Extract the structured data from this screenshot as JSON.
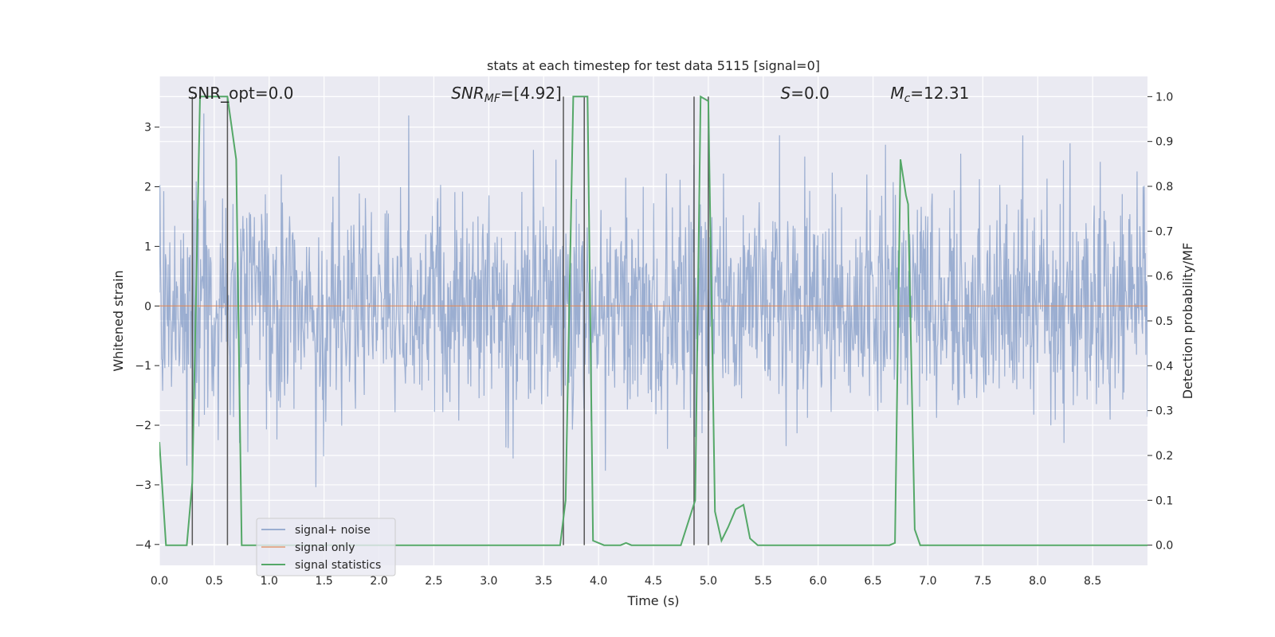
{
  "chart_data": {
    "type": "line",
    "title": "stats at each timestep for test data 5115 [signal=0]",
    "xlabel": "Time (s)",
    "ylabel_left": "Whitened strain",
    "ylabel_right": "Detection probability/MF",
    "xlim": [
      0.0,
      9.0
    ],
    "ylim_left": [
      -4.35,
      3.85
    ],
    "ylim_right": [
      -0.045,
      1.045
    ],
    "x_ticks": [
      0.0,
      0.5,
      1.0,
      1.5,
      2.0,
      2.5,
      3.0,
      3.5,
      4.0,
      4.5,
      5.0,
      5.5,
      6.0,
      6.5,
      7.0,
      7.5,
      8.0,
      8.5
    ],
    "x_tick_labels": [
      "0.0",
      "0.5",
      "1.0",
      "1.5",
      "2.0",
      "2.5",
      "3.0",
      "3.5",
      "4.0",
      "4.5",
      "5.0",
      "5.5",
      "6.0",
      "6.5",
      "7.0",
      "7.5",
      "8.0",
      "8.5"
    ],
    "y_left_ticks": [
      -4,
      -3,
      -2,
      -1,
      0,
      1,
      2,
      3
    ],
    "y_left_tick_labels": [
      "−4",
      "−3",
      "−2",
      "−1",
      "0",
      "1",
      "2",
      "3"
    ],
    "y_right_ticks": [
      0.0,
      0.1,
      0.2,
      0.3,
      0.4,
      0.5,
      0.6,
      0.7,
      0.8,
      0.9,
      1.0
    ],
    "y_right_tick_labels": [
      "0.0",
      "0.1",
      "0.2",
      "0.3",
      "0.4",
      "0.5",
      "0.6",
      "0.7",
      "0.8",
      "0.9",
      "1.0"
    ],
    "annotations": {
      "snr_opt": "SNR_opt=0.0",
      "snr_mf_main": "SNR",
      "snr_mf_sub": "MF",
      "snr_mf_value": "=[4.92]",
      "s_main": "S",
      "s_value": "=0.0",
      "mc_main": "M",
      "mc_sub": "c",
      "mc_value": "=12.31"
    },
    "annotation_x": [
      0.2,
      2.6,
      5.6,
      6.6
    ],
    "vertical_lines_x": [
      0.3,
      0.62,
      3.68,
      3.87,
      4.87,
      5.0
    ],
    "series": [
      {
        "name": "signal+ noise",
        "color": "#4c72b0",
        "axis": "left",
        "noise": {
          "n_samples": 1800,
          "seed": 5115,
          "sigma": 0.95,
          "amplitude_range": [
            -4.0,
            3.6
          ]
        }
      },
      {
        "name": "signal only",
        "color": "#dd8452",
        "axis": "left",
        "x": [
          0.0,
          9.0
        ],
        "y": [
          0.0,
          0.0
        ]
      },
      {
        "name": "signal statistics",
        "color": "#55a868",
        "axis": "right",
        "x": [
          0.0,
          0.06,
          0.25,
          0.3,
          0.37,
          0.62,
          0.7,
          0.75,
          3.65,
          3.7,
          3.77,
          3.9,
          3.95,
          4.05,
          4.2,
          4.25,
          4.3,
          4.75,
          4.88,
          4.93,
          5.0,
          5.06,
          5.12,
          5.18,
          5.25,
          5.32,
          5.38,
          5.45,
          6.65,
          6.7,
          6.75,
          6.8,
          6.82,
          6.88,
          6.93,
          9.0
        ],
        "y": [
          0.23,
          0.0,
          0.0,
          0.14,
          1.0,
          1.0,
          0.86,
          0.0,
          0.0,
          0.1,
          1.0,
          1.0,
          0.01,
          0.0,
          0.0,
          0.005,
          0.0,
          0.0,
          0.1,
          1.0,
          0.99,
          0.075,
          0.01,
          0.04,
          0.08,
          0.09,
          0.015,
          0.0,
          0.0,
          0.005,
          0.86,
          0.78,
          0.76,
          0.035,
          0.0,
          0.0
        ]
      }
    ],
    "legend": {
      "placement": "lower-left",
      "entries": [
        "signal+ noise",
        "signal only",
        "signal statistics"
      ]
    },
    "grid": true
  }
}
